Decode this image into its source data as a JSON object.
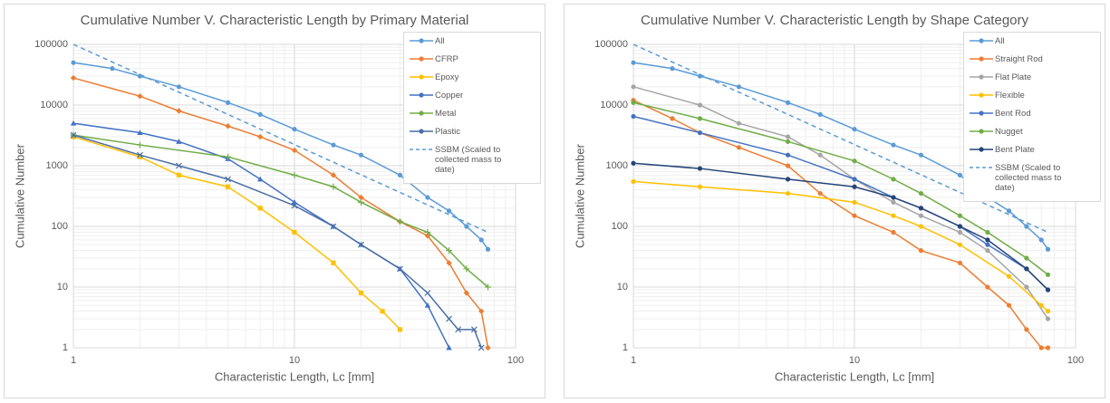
{
  "chart_data": [
    {
      "type": "line",
      "title": "Cumulative Number V. Characteristic Length by Primary Material",
      "x_label": "Characteristic Length, Lc [mm]",
      "y_label": "Cumulative Number",
      "xlim": [
        1,
        100
      ],
      "ylim": [
        1,
        100000
      ],
      "xticks": [
        1,
        10,
        100
      ],
      "yticks": [
        1,
        10,
        100,
        1000,
        10000,
        100000
      ],
      "log_x": true,
      "log_y": true,
      "grid": true,
      "legend": "upper right",
      "series": [
        {
          "name": "All",
          "color": "#5b9bd5",
          "marker": "circle",
          "x": [
            1,
            1.5,
            2,
            3,
            5,
            7,
            10,
            15,
            20,
            30,
            40,
            50,
            60,
            70,
            75
          ],
          "values": [
            50000,
            40000,
            30000,
            20000,
            11000,
            7000,
            4000,
            2200,
            1500,
            700,
            300,
            180,
            100,
            60,
            42
          ]
        },
        {
          "name": "CFRP",
          "color": "#ed7d31",
          "marker": "diamond",
          "x": [
            1,
            2,
            3,
            5,
            7,
            10,
            15,
            20,
            30,
            40,
            50,
            60,
            70,
            75
          ],
          "values": [
            28000,
            14000,
            8000,
            4500,
            3000,
            1800,
            700,
            300,
            120,
            70,
            25,
            8,
            4,
            1
          ]
        },
        {
          "name": "Epoxy",
          "color": "#ffc000",
          "marker": "square",
          "x": [
            1,
            2,
            3,
            5,
            7,
            10,
            15,
            20,
            25,
            30
          ],
          "values": [
            3000,
            1400,
            700,
            450,
            200,
            80,
            25,
            8,
            4,
            2
          ]
        },
        {
          "name": "Copper",
          "color": "#4472c4",
          "marker": "triangle",
          "x": [
            1,
            2,
            3,
            5,
            7,
            10,
            15,
            20,
            30,
            40,
            50
          ],
          "values": [
            5000,
            3500,
            2500,
            1300,
            600,
            250,
            100,
            50,
            20,
            5,
            1
          ]
        },
        {
          "name": "Metal",
          "color": "#70ad47",
          "marker": "plus",
          "x": [
            1,
            2,
            5,
            10,
            15,
            20,
            30,
            40,
            50,
            60,
            75
          ],
          "values": [
            3200,
            2200,
            1400,
            700,
            450,
            250,
            120,
            80,
            40,
            20,
            10
          ]
        },
        {
          "name": "Plastic",
          "color": "#4a6fa5",
          "marker": "cross",
          "x": [
            1,
            2,
            3,
            5,
            10,
            15,
            20,
            30,
            40,
            50,
            55,
            65,
            70
          ],
          "values": [
            3200,
            1500,
            1000,
            600,
            220,
            100,
            50,
            20,
            8,
            3,
            2,
            2,
            1
          ]
        },
        {
          "name": "SSBM (Scaled to collected mass to date)",
          "color": "#5b9bd5",
          "dash": true,
          "x": [
            1,
            75
          ],
          "values": [
            100000,
            80
          ]
        }
      ]
    },
    {
      "type": "line",
      "title": "Cumulative Number V. Characteristic Length by Shape Category",
      "x_label": "Characteristic Length, Lc [mm]",
      "y_label": "Cumulative Number",
      "xlim": [
        1,
        100
      ],
      "ylim": [
        1,
        100000
      ],
      "xticks": [
        1,
        10,
        100
      ],
      "yticks": [
        1,
        10,
        100,
        1000,
        10000,
        100000
      ],
      "log_x": true,
      "log_y": true,
      "grid": true,
      "legend": "upper right",
      "series": [
        {
          "name": "All",
          "color": "#5b9bd5",
          "marker": "circle",
          "x": [
            1,
            1.5,
            2,
            3,
            5,
            7,
            10,
            15,
            20,
            30,
            40,
            50,
            60,
            70,
            75
          ],
          "values": [
            50000,
            40000,
            30000,
            20000,
            11000,
            7000,
            4000,
            2200,
            1500,
            700,
            300,
            180,
            100,
            60,
            42
          ]
        },
        {
          "name": "Straight Rod",
          "color": "#ed7d31",
          "marker": "circle",
          "x": [
            1,
            1.5,
            2,
            3,
            5,
            7,
            10,
            15,
            20,
            30,
            40,
            50,
            60,
            70,
            75
          ],
          "values": [
            12000,
            6000,
            3500,
            2000,
            1000,
            350,
            150,
            80,
            40,
            25,
            10,
            5,
            2,
            1,
            1
          ]
        },
        {
          "name": "Flat Plate",
          "color": "#a5a5a5",
          "marker": "circle",
          "x": [
            1,
            2,
            3,
            5,
            7,
            10,
            15,
            20,
            30,
            40,
            60,
            75
          ],
          "values": [
            20000,
            10000,
            5000,
            3000,
            1500,
            600,
            250,
            150,
            80,
            40,
            10,
            3
          ]
        },
        {
          "name": "Flexible",
          "color": "#ffc000",
          "marker": "circle",
          "x": [
            1,
            2,
            5,
            10,
            15,
            20,
            30,
            50,
            70,
            75
          ],
          "values": [
            550,
            450,
            350,
            250,
            150,
            100,
            50,
            15,
            5,
            4
          ]
        },
        {
          "name": "Bent Rod",
          "color": "#4472c4",
          "marker": "circle",
          "x": [
            1,
            2,
            5,
            10,
            15,
            20,
            30,
            40,
            60,
            75
          ],
          "values": [
            6500,
            3500,
            1500,
            600,
            300,
            200,
            100,
            50,
            20,
            9
          ]
        },
        {
          "name": "Nugget",
          "color": "#70ad47",
          "marker": "circle",
          "x": [
            1,
            2,
            5,
            10,
            15,
            20,
            30,
            40,
            60,
            75
          ],
          "values": [
            11000,
            6000,
            2500,
            1200,
            600,
            350,
            150,
            80,
            30,
            16
          ]
        },
        {
          "name": "Bent Plate",
          "color": "#264478",
          "marker": "circle",
          "x": [
            1,
            2,
            5,
            10,
            15,
            20,
            30,
            40,
            60,
            75
          ],
          "values": [
            1100,
            900,
            600,
            450,
            300,
            200,
            100,
            60,
            20,
            9
          ]
        },
        {
          "name": "SSBM (Scaled to collected mass to date)",
          "color": "#5b9bd5",
          "dash": true,
          "x": [
            1,
            75
          ],
          "values": [
            100000,
            80
          ]
        }
      ]
    }
  ]
}
